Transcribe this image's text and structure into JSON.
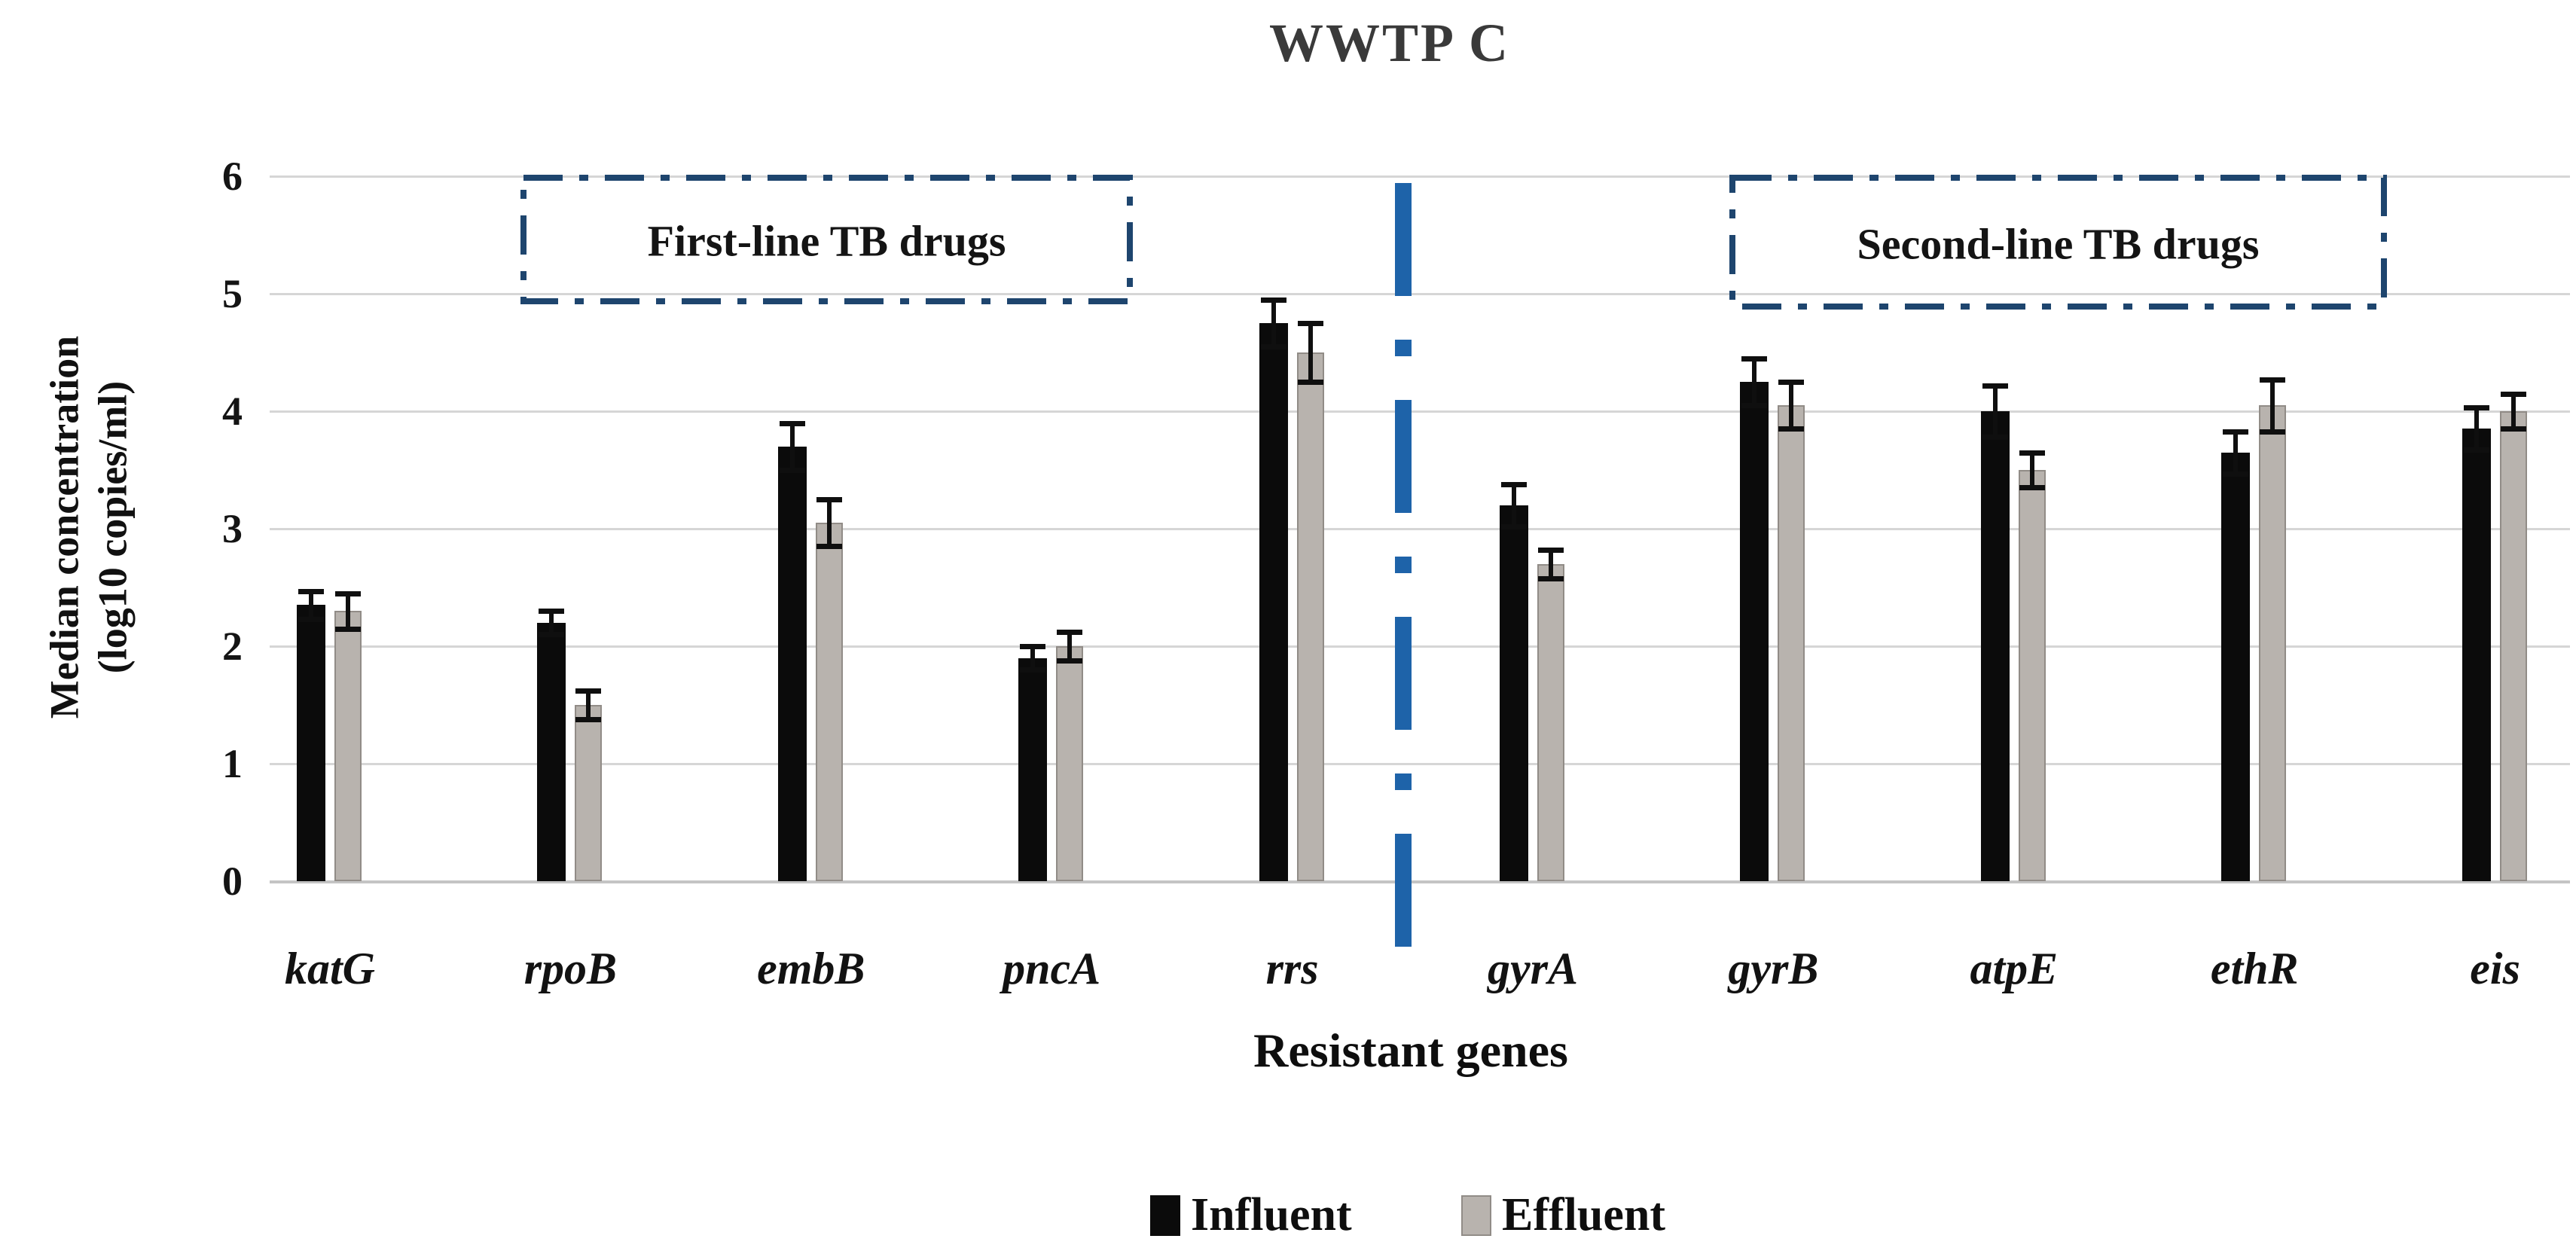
{
  "chart_data": {
    "type": "bar",
    "title": "WWTP C",
    "xlabel": "Resistant genes",
    "ylabel_line1": "Median concentration",
    "ylabel_line2": "(log10 copies/ml)",
    "ylim": [
      0,
      6
    ],
    "yticks": [
      0,
      1,
      2,
      3,
      4,
      5,
      6
    ],
    "grid": true,
    "legend_position": "bottom",
    "categories": [
      "katG",
      "rpoB",
      "embB",
      "pncA",
      "rrs",
      "gyrA",
      "gyrB",
      "atpE",
      "ethR",
      "eis"
    ],
    "series": [
      {
        "name": "Influent",
        "color": "#0b0b0b",
        "values": [
          2.35,
          2.2,
          3.7,
          1.9,
          4.75,
          3.2,
          4.25,
          4.0,
          3.65,
          3.85
        ],
        "errors": [
          0.12,
          0.1,
          0.2,
          0.1,
          0.2,
          0.18,
          0.2,
          0.22,
          0.18,
          0.18
        ]
      },
      {
        "name": "Effluent",
        "color": "#b8b3ae",
        "values": [
          2.3,
          1.5,
          3.05,
          2.0,
          4.5,
          2.7,
          4.05,
          3.5,
          4.05,
          4.0
        ],
        "errors": [
          0.15,
          0.12,
          0.2,
          0.12,
          0.25,
          0.12,
          0.2,
          0.15,
          0.22,
          0.15
        ]
      }
    ],
    "annotations": [
      {
        "label": "First-line TB drugs",
        "span_categories": [
          "katG",
          "rrs"
        ]
      },
      {
        "label": "Second-line TB drugs",
        "span_categories": [
          "gyrA",
          "eis"
        ]
      }
    ],
    "divider_between": [
      "rrs",
      "gyrA"
    ]
  },
  "colors": {
    "influent": "#0b0b0b",
    "effluent": "#b8b3ae",
    "gridline": "#d6d6d6",
    "baseline": "#c4c4c4",
    "error_bar": "#0f0f0f",
    "annotation_border": "#1e456e",
    "divider": "#1e63a9",
    "title_text": "#3a3a3a",
    "text": "#121212"
  },
  "legend": {
    "items": [
      {
        "label": "Influent",
        "swatch": "influent-swatch"
      },
      {
        "label": "Effluent",
        "swatch": "effluent-swatch"
      }
    ]
  }
}
